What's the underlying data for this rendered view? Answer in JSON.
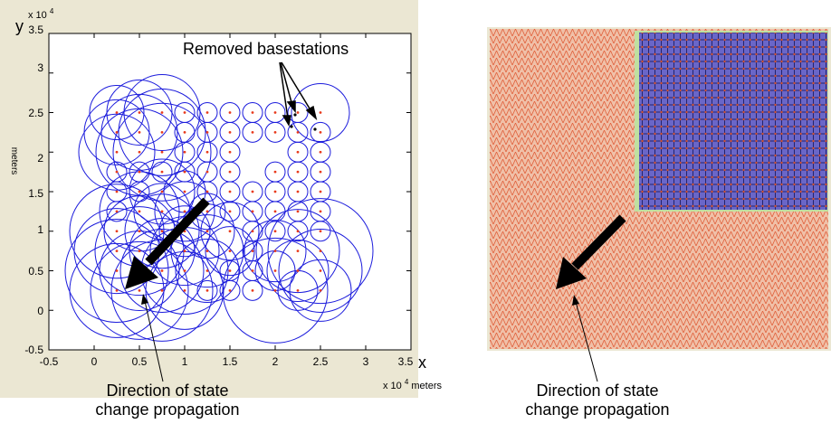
{
  "left_panel": {
    "y_axis_letter": "y",
    "x_axis_letter": "x",
    "y_scale_note": {
      "base": "x 10",
      "exp": "4"
    },
    "x_scale_note": {
      "base": "x 10",
      "exp": "4",
      "unit": "meters"
    },
    "ylabel": "meters",
    "x_ticks": [
      "-0.5",
      "0",
      "0.5",
      "1",
      "1.5",
      "2",
      "2.5",
      "3",
      "3.5"
    ],
    "y_ticks": [
      "3.5",
      "3",
      "2.5",
      "2",
      "1.5",
      "1",
      "0.5",
      "0",
      "-0.5"
    ],
    "annotation": "Removed basestations",
    "caption_line1": "Direction of state",
    "caption_line2": "change propagation"
  },
  "right_panel": {
    "caption_line1": "Direction of state",
    "caption_line2": "change propagation"
  },
  "colors": {
    "panel_bg": "#ebe7d3",
    "circle": "#1c1cdc",
    "station": "#e83a1c",
    "mesh": "#e05f3a",
    "active_region": "#3a3aa6",
    "arrow": "#000000"
  },
  "icons": {
    "direction_arrow": "thick-arrow-icon"
  }
}
